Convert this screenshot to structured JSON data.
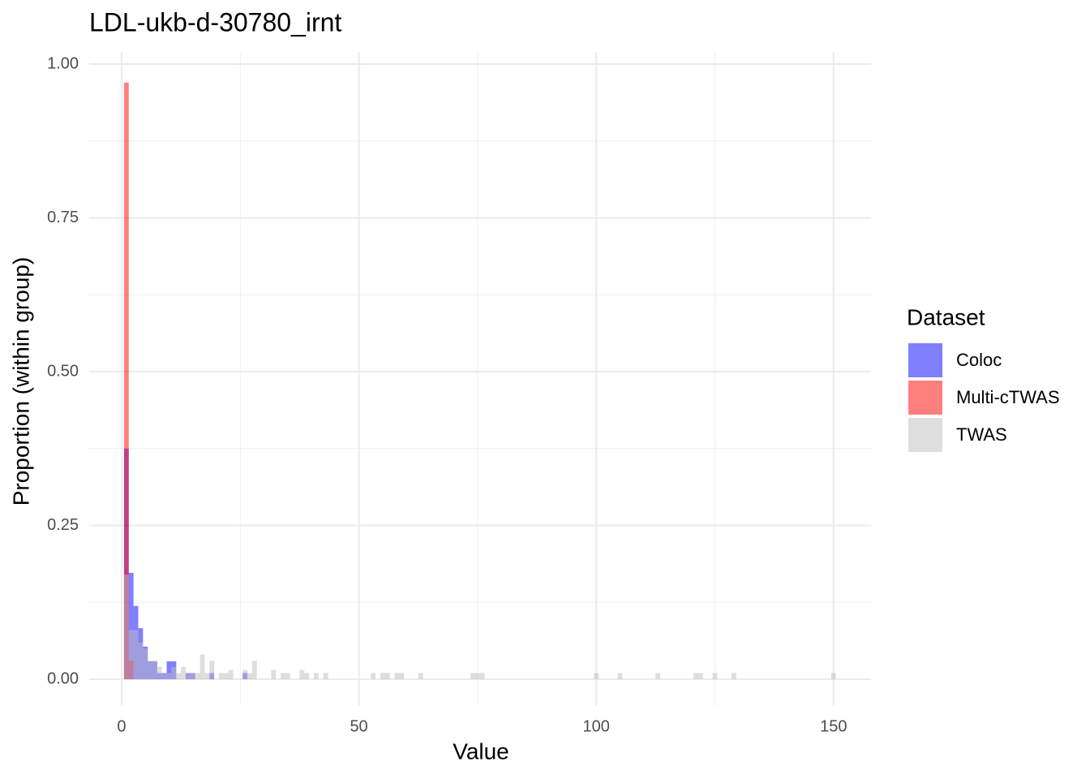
{
  "chart_data": {
    "type": "histogram",
    "title": "LDL-ukb-d-30780_irnt",
    "x_label": "Value",
    "y_label": "Proportion (within group)",
    "legend_title": "Dataset",
    "legend_position": "right",
    "grid": true,
    "xlim": [
      -6.83,
      157.9
    ],
    "xticks": [
      0,
      50,
      100,
      150
    ],
    "ylim": [
      -0.0435,
      1.0198
    ],
    "yticks": [
      {
        "value": 0,
        "label": "0.00"
      },
      {
        "value": 0.25,
        "label": "0.25"
      },
      {
        "value": 0.5,
        "label": "0.50"
      },
      {
        "value": 0.75,
        "label": "0.75"
      },
      {
        "value": 1,
        "label": "1.00"
      }
    ],
    "bins": [
      0.5,
      1.5,
      2.5,
      3.5,
      4.5,
      5.5,
      6.5,
      7.5,
      8.5,
      9.5,
      10.5,
      11.5,
      12.5,
      13.5,
      14.5,
      15.5,
      16.5,
      17.5,
      18.5,
      19.5,
      20.5,
      21.5,
      22.5,
      23.5,
      24.5,
      25.5,
      26.5,
      27.5,
      28.5,
      29.5,
      30.5,
      31.5,
      32.5,
      33.5,
      34.5,
      35.5,
      36.5,
      37.5,
      38.5,
      39.5,
      40.5,
      41.5,
      42.5,
      43.5,
      44.5,
      45.5,
      46.5,
      47.5,
      48.5,
      49.5,
      50.5,
      51.5,
      52.5,
      53.5,
      54.5,
      55.5,
      56.5,
      57.5,
      58.5,
      59.5,
      60.5,
      61.5,
      62.5,
      63.5,
      64.5,
      65.5,
      66.5,
      67.5,
      68.5,
      69.5,
      70.5,
      71.5,
      72.5,
      73.5,
      74.5,
      75.5,
      76.5,
      77.5,
      78.5,
      79.5,
      80.5,
      81.5,
      82.5,
      83.5,
      84.5,
      85.5,
      86.5,
      87.5,
      88.5,
      89.5,
      90.5,
      91.5,
      92.5,
      93.5,
      94.5,
      95.5,
      96.5,
      97.5,
      98.5,
      99.5,
      100.5,
      101.5,
      102.5,
      103.5,
      104.5,
      105.5,
      106.5,
      107.5,
      108.5,
      109.5,
      110.5,
      111.5,
      112.5,
      113.5,
      114.5,
      115.5,
      116.5,
      117.5,
      118.5,
      119.5,
      120.5,
      121.5,
      122.5,
      123.5,
      124.5,
      125.5,
      126.5,
      127.5,
      128.5,
      129.5,
      130.5,
      131.5,
      132.5,
      133.5,
      134.5,
      135.5,
      136.5,
      137.5,
      138.5,
      139.5,
      140.5,
      141.5,
      142.5,
      143.5,
      144.5,
      145.5,
      146.5,
      147.5,
      148.5,
      149.5,
      150.5
    ],
    "series": [
      {
        "name": "Coloc",
        "color": "#0000ff",
        "values": [
          0.375,
          0.173,
          0.119,
          0.083,
          0.053,
          0.029,
          0.029,
          0.01,
          0.01,
          0.029,
          0.029,
          0,
          0,
          0.01,
          0.01,
          0,
          0,
          0,
          0.01,
          0,
          0,
          0,
          0,
          0,
          0,
          0.01,
          0,
          0,
          0,
          0,
          0,
          0,
          0,
          0,
          0,
          0,
          0,
          0,
          0,
          0,
          0,
          0,
          0,
          0,
          0,
          0,
          0,
          0,
          0,
          0,
          0,
          0,
          0,
          0,
          0,
          0,
          0,
          0,
          0,
          0,
          0,
          0,
          0,
          0,
          0,
          0,
          0,
          0,
          0,
          0,
          0,
          0,
          0,
          0,
          0,
          0,
          0,
          0,
          0,
          0,
          0,
          0,
          0,
          0,
          0,
          0,
          0,
          0,
          0,
          0,
          0,
          0,
          0,
          0,
          0,
          0,
          0,
          0,
          0,
          0,
          0,
          0,
          0,
          0,
          0,
          0,
          0,
          0,
          0,
          0,
          0,
          0,
          0,
          0,
          0,
          0,
          0,
          0,
          0,
          0,
          0,
          0,
          0,
          0,
          0,
          0,
          0,
          0,
          0,
          0,
          0,
          0,
          0,
          0,
          0,
          0,
          0,
          0,
          0,
          0,
          0,
          0,
          0,
          0,
          0,
          0,
          0,
          0,
          0,
          0
        ]
      },
      {
        "name": "Multi-cTWAS",
        "color": "#ff0000",
        "values": [
          0.97,
          0.03,
          0,
          0,
          0,
          0,
          0,
          0,
          0,
          0,
          0,
          0,
          0,
          0,
          0,
          0,
          0,
          0,
          0,
          0,
          0,
          0,
          0,
          0,
          0,
          0,
          0,
          0,
          0,
          0,
          0,
          0,
          0,
          0,
          0,
          0,
          0,
          0,
          0,
          0,
          0,
          0,
          0,
          0,
          0,
          0,
          0,
          0,
          0,
          0,
          0,
          0,
          0,
          0,
          0,
          0,
          0,
          0,
          0,
          0,
          0,
          0,
          0,
          0,
          0,
          0,
          0,
          0,
          0,
          0,
          0,
          0,
          0,
          0,
          0,
          0,
          0,
          0,
          0,
          0,
          0,
          0,
          0,
          0,
          0,
          0,
          0,
          0,
          0,
          0,
          0,
          0,
          0,
          0,
          0,
          0,
          0,
          0,
          0,
          0,
          0,
          0,
          0,
          0,
          0,
          0,
          0,
          0,
          0,
          0,
          0,
          0,
          0,
          0,
          0,
          0,
          0,
          0,
          0,
          0,
          0,
          0,
          0,
          0,
          0,
          0,
          0,
          0,
          0,
          0,
          0,
          0,
          0,
          0,
          0,
          0,
          0,
          0,
          0,
          0,
          0,
          0,
          0,
          0,
          0,
          0,
          0,
          0,
          0,
          0
        ]
      },
      {
        "name": "TWAS",
        "color": "#bebebe",
        "values": [
          0.17,
          0.08,
          0.08,
          0.06,
          0.05,
          0.03,
          0.03,
          0.02,
          0.01,
          0.01,
          0.02,
          0.01,
          0.02,
          0.01,
          0.01,
          0.01,
          0.04,
          0.01,
          0.03,
          0,
          0.01,
          0.01,
          0.015,
          0,
          0,
          0.015,
          0.01,
          0.03,
          0,
          0,
          0,
          0.015,
          0,
          0.01,
          0.01,
          0,
          0,
          0.015,
          0.01,
          0,
          0.01,
          0,
          0.01,
          0,
          0,
          0,
          0,
          0,
          0,
          0,
          0,
          0,
          0.01,
          0,
          0.01,
          0.01,
          0,
          0.01,
          0.01,
          0,
          0,
          0,
          0.01,
          0,
          0,
          0,
          0,
          0,
          0,
          0,
          0,
          0,
          0,
          0.01,
          0.01,
          0.01,
          0,
          0,
          0,
          0,
          0,
          0,
          0,
          0,
          0,
          0,
          0,
          0,
          0,
          0,
          0,
          0,
          0,
          0,
          0,
          0,
          0,
          0,
          0,
          0.01,
          0,
          0,
          0,
          0,
          0.01,
          0,
          0,
          0,
          0,
          0,
          0,
          0,
          0.01,
          0,
          0,
          0,
          0,
          0,
          0,
          0,
          0.01,
          0.01,
          0,
          0,
          0.01,
          0,
          0,
          0,
          0.01,
          0,
          0,
          0,
          0,
          0,
          0,
          0,
          0,
          0,
          0,
          0,
          0,
          0,
          0,
          0,
          0,
          0,
          0,
          0,
          0,
          0.01
        ]
      }
    ]
  }
}
